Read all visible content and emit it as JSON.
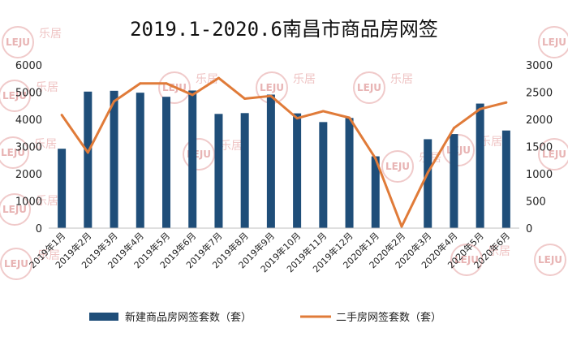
{
  "chart_data": {
    "type": "bar",
    "title": "2019.1-2020.6南昌市商品房网签",
    "categories": [
      "2019年1月",
      "2019年2月",
      "2019年3月",
      "2019年4月",
      "2019年5月",
      "2019年6月",
      "2019年7月",
      "2019年8月",
      "2019年9月",
      "2019年10月",
      "2019年11月",
      "2019年12月",
      "2020年1月",
      "2020年2月",
      "2020年3月",
      "2020年4月",
      "2020年5月",
      "2020年6月"
    ],
    "series": [
      {
        "name": "新建商品房网签套数（套）",
        "type": "bar",
        "axis": "left",
        "values": [
          2920,
          5020,
          5050,
          4980,
          4830,
          5060,
          4200,
          4230,
          4910,
          4220,
          3900,
          4050,
          2640,
          0,
          3270,
          3460,
          4580,
          3590
        ]
      },
      {
        "name": "二手房网签套数（套）",
        "type": "line",
        "axis": "right",
        "values": [
          2080,
          1390,
          2330,
          2660,
          2660,
          2450,
          2760,
          2380,
          2430,
          2020,
          2150,
          2030,
          1280,
          30,
          1020,
          1840,
          2190,
          2310
        ]
      }
    ],
    "ylim_left": [
      0,
      6000
    ],
    "yticks_left": [
      "0",
      "1000",
      "2000",
      "3000",
      "4000",
      "5000",
      "6000"
    ],
    "ylim_right": [
      0,
      3000
    ],
    "yticks_right": [
      "0",
      "500",
      "1000",
      "1500",
      "2000",
      "2500",
      "3000"
    ],
    "legend_position": "bottom",
    "grid": false,
    "colors": {
      "bar": "#1f4e79",
      "line": "#e07b39"
    }
  },
  "watermark": {
    "logo_text": "LEJU",
    "cn_text": "乐居"
  }
}
